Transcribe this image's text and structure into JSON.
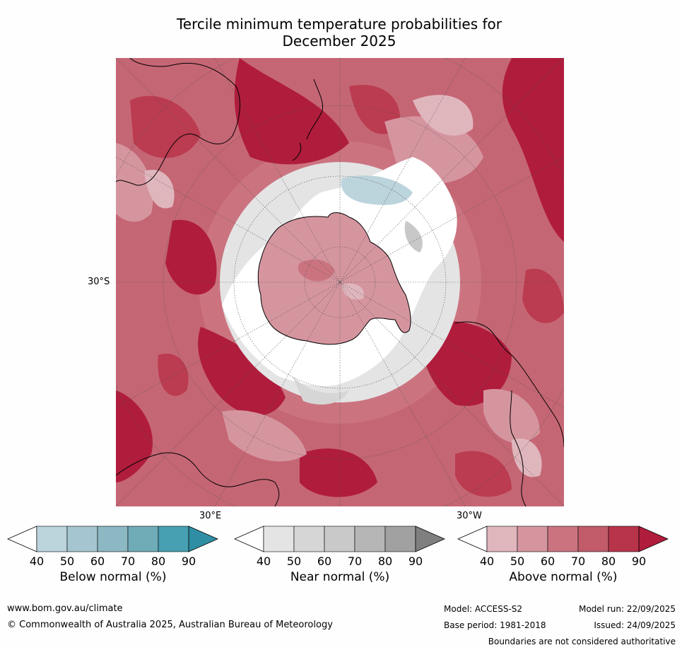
{
  "title_line1": "Tercile minimum temperature probabilities for",
  "title_line2": "December 2025",
  "map": {
    "lat_label": "30°S",
    "lon_label_east": "30°E",
    "lon_label_west": "30°W",
    "colors": {
      "above": [
        "#e0b6bd",
        "#d5959f",
        "#cb7480",
        "#c15b69",
        "#b8344a",
        "#b01c3c"
      ],
      "near": [
        "#e4e4e4",
        "#d6d6d6",
        "#c8c8c8"
      ],
      "below": [
        "#bcd4dc",
        "#a5c6d0"
      ],
      "land_line": "#000000",
      "ocean_white": "#ffffff"
    }
  },
  "colorbars": [
    {
      "label": "Below normal (%)",
      "ticks": [
        "40",
        "50",
        "60",
        "70",
        "80",
        "90"
      ],
      "colors": [
        "#ffffff",
        "#bcd4dc",
        "#a5c6d0",
        "#8cb8c3",
        "#6facb8",
        "#46a0b1",
        "#2f8ea3"
      ]
    },
    {
      "label": "Near normal (%)",
      "ticks": [
        "40",
        "50",
        "60",
        "70",
        "80",
        "90"
      ],
      "colors": [
        "#ffffff",
        "#e4e4e4",
        "#d6d6d6",
        "#c9c9c9",
        "#b6b6b6",
        "#a1a1a1",
        "#7f7f7f"
      ]
    },
    {
      "label": "Above normal (%)",
      "ticks": [
        "40",
        "50",
        "60",
        "70",
        "80",
        "90"
      ],
      "colors": [
        "#ffffff",
        "#e0b6bd",
        "#d5959f",
        "#cb7480",
        "#c15b69",
        "#b8344a",
        "#b01c3c"
      ]
    }
  ],
  "footer": {
    "website": "www.bom.gov.au/climate",
    "copyright": "© Commonwealth of Australia 2025, Australian Bureau of Meteorology",
    "model": "Model: ACCESS-S2",
    "base_period": "Base period: 1981-2018",
    "model_run": "Model run: 22/09/2025",
    "issued": "Issued: 24/09/2025",
    "disclaimer": "Boundaries are not considered authoritative"
  }
}
